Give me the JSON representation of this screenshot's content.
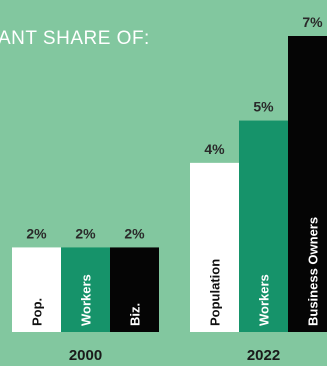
{
  "chart_data": {
    "type": "bar",
    "title": "ANT SHARE OF:",
    "value_suffix": "%",
    "ylim": [
      0,
      7
    ],
    "groups": [
      {
        "name": "2000",
        "bars": [
          {
            "label": "Pop.",
            "value": 2,
            "value_label": "2%",
            "color": "#ffffff",
            "text_color": "#111111"
          },
          {
            "label": "Workers",
            "value": 2,
            "value_label": "2%",
            "color": "#16936a",
            "text_color": "#ffffff"
          },
          {
            "label": "Biz.",
            "value": 2,
            "value_label": "2%",
            "color": "#050505",
            "text_color": "#ffffff"
          }
        ]
      },
      {
        "name": "2022",
        "bars": [
          {
            "label": "Population",
            "value": 4,
            "value_label": "4%",
            "color": "#ffffff",
            "text_color": "#111111"
          },
          {
            "label": "Workers",
            "value": 5,
            "value_label": "5%",
            "color": "#16936a",
            "text_color": "#ffffff"
          },
          {
            "label": "Business Owners",
            "value": 7,
            "value_label": "7%",
            "color": "#050505",
            "text_color": "#ffffff"
          }
        ]
      }
    ],
    "grid": false,
    "legend": "none"
  }
}
